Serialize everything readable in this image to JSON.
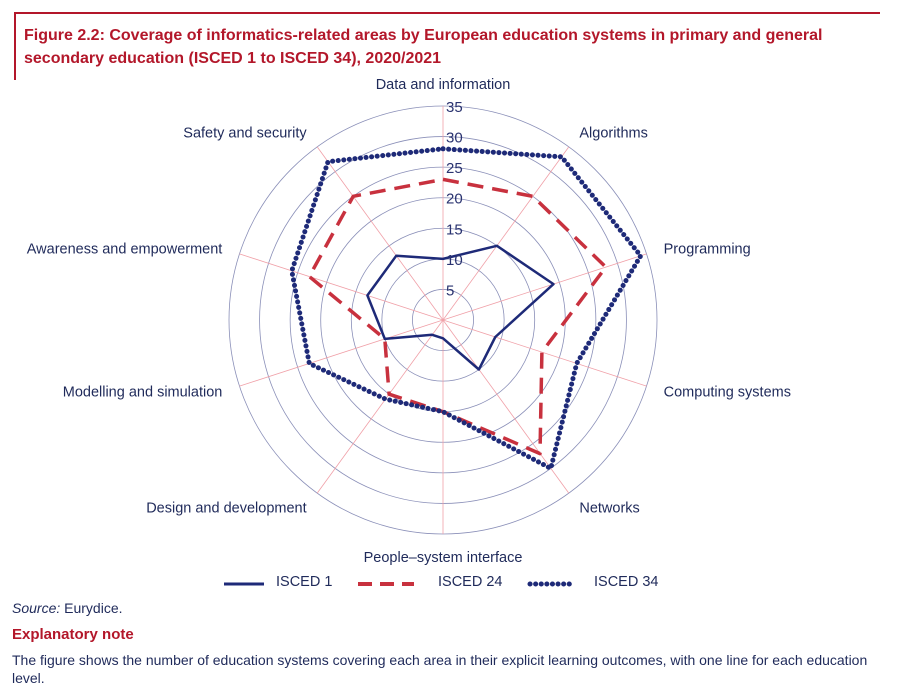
{
  "figure": {
    "title": "Figure 2.2: Coverage of informatics-related areas by European education systems in primary and general secondary education (ISCED 1 to ISCED 34), 2020/2021"
  },
  "chart_data": {
    "type": "radar",
    "title": "Figure 2.2: Coverage of informatics-related areas by European education systems in primary and general secondary education (ISCED 1 to ISCED 34), 2020/2021",
    "categories": [
      "Data and information",
      "Algorithms",
      "Programming",
      "Computing systems",
      "Networks",
      "People–system interface",
      "Design and development",
      "Modelling and simulation",
      "Awareness and empowerment",
      "Safety and security"
    ],
    "r_ticks": [
      5,
      10,
      15,
      20,
      25,
      30,
      35
    ],
    "r_range": [
      0,
      35
    ],
    "grid": true,
    "legend_position": "bottom",
    "series": [
      {
        "name": "ISCED 1",
        "values": [
          10,
          15,
          19,
          9,
          10,
          3,
          3,
          10,
          13,
          13
        ],
        "color": "#1e2a78",
        "style": "solid"
      },
      {
        "name": "ISCED 24",
        "values": [
          23,
          25,
          28,
          17,
          27,
          15,
          15,
          10,
          23,
          25
        ],
        "color": "#c8313e",
        "style": "dashed"
      },
      {
        "name": "ISCED 34",
        "values": [
          28,
          33,
          34,
          23,
          30,
          15,
          16,
          23,
          26,
          32
        ],
        "color": "#1e2a78",
        "style": "dotted"
      }
    ]
  },
  "legend": {
    "items": [
      "ISCED 1",
      "ISCED 24",
      "ISCED 34"
    ]
  },
  "source": {
    "prefix": "Source:",
    "text": " Eurydice."
  },
  "note": {
    "title": "Explanatory note",
    "text": "The figure shows the number of education systems covering each area in their explicit learning outcomes, with one line for each education level."
  }
}
